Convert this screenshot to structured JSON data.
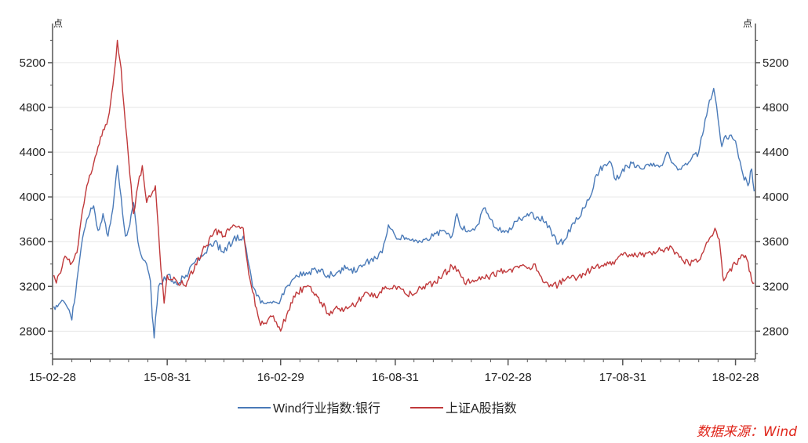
{
  "chart_data": {
    "type": "line",
    "title": "",
    "xlabel": "",
    "ylabel": "点",
    "ylabel_right": "点",
    "ylim": [
      2550,
      5550
    ],
    "yticks": [
      2800,
      3200,
      3600,
      4000,
      4400,
      4800,
      5200
    ],
    "ytick_labels": [
      "2800",
      "3200",
      "3600",
      "4000",
      "4400",
      "4800",
      "5200"
    ],
    "x_range": [
      "2015-02-28",
      "2018-04-01"
    ],
    "x_tick_dates": [
      "2015-02-28",
      "2015-08-31",
      "2016-02-29",
      "2016-08-31",
      "2017-02-28",
      "2017-08-31",
      "2018-02-28"
    ],
    "x_tick_labels": [
      "15-02-28",
      "15-08-31",
      "16-02-29",
      "16-08-31",
      "17-02-28",
      "17-08-31",
      "18-02-28"
    ],
    "grid": "horizontal",
    "legend_position": "bottom",
    "series": [
      {
        "name": "Wind行业指数:银行",
        "color": "#4a7ab8",
        "points": [
          [
            "2015-03-02",
            3020
          ],
          [
            "2015-03-10",
            3040
          ],
          [
            "2015-03-20",
            3050
          ],
          [
            "2015-03-31",
            2900
          ],
          [
            "2015-04-08",
            3250
          ],
          [
            "2015-04-15",
            3550
          ],
          [
            "2015-04-24",
            3800
          ],
          [
            "2015-05-05",
            3920
          ],
          [
            "2015-05-12",
            3700
          ],
          [
            "2015-05-20",
            3850
          ],
          [
            "2015-05-28",
            3650
          ],
          [
            "2015-06-05",
            3900
          ],
          [
            "2015-06-12",
            4280
          ],
          [
            "2015-06-18",
            4000
          ],
          [
            "2015-06-25",
            3650
          ],
          [
            "2015-07-02",
            3750
          ],
          [
            "2015-07-08",
            3950
          ],
          [
            "2015-07-15",
            3600
          ],
          [
            "2015-07-22",
            3450
          ],
          [
            "2015-07-29",
            3400
          ],
          [
            "2015-08-04",
            3250
          ],
          [
            "2015-08-07",
            2930
          ],
          [
            "2015-08-10",
            2740
          ],
          [
            "2015-08-17",
            3200
          ],
          [
            "2015-08-31",
            3300
          ],
          [
            "2015-09-15",
            3220
          ],
          [
            "2015-09-30",
            3300
          ],
          [
            "2015-10-15",
            3420
          ],
          [
            "2015-10-31",
            3500
          ],
          [
            "2015-11-15",
            3600
          ],
          [
            "2015-11-30",
            3500
          ],
          [
            "2015-12-15",
            3620
          ],
          [
            "2015-12-31",
            3650
          ],
          [
            "2016-01-07",
            3450
          ],
          [
            "2016-01-15",
            3200
          ],
          [
            "2016-01-28",
            3050
          ],
          [
            "2016-02-15",
            3050
          ],
          [
            "2016-02-29",
            3080
          ],
          [
            "2016-03-10",
            3200
          ],
          [
            "2016-03-25",
            3300
          ],
          [
            "2016-04-15",
            3330
          ],
          [
            "2016-04-30",
            3350
          ],
          [
            "2016-05-15",
            3300
          ],
          [
            "2016-05-31",
            3330
          ],
          [
            "2016-06-15",
            3370
          ],
          [
            "2016-06-30",
            3330
          ],
          [
            "2016-07-15",
            3420
          ],
          [
            "2016-07-31",
            3450
          ],
          [
            "2016-08-10",
            3500
          ],
          [
            "2016-08-20",
            3750
          ],
          [
            "2016-08-31",
            3650
          ],
          [
            "2016-09-15",
            3620
          ],
          [
            "2016-09-30",
            3600
          ],
          [
            "2016-10-15",
            3620
          ],
          [
            "2016-10-31",
            3650
          ],
          [
            "2016-11-15",
            3700
          ],
          [
            "2016-11-30",
            3650
          ],
          [
            "2016-12-08",
            3850
          ],
          [
            "2016-12-15",
            3720
          ],
          [
            "2016-12-31",
            3700
          ],
          [
            "2017-01-10",
            3750
          ],
          [
            "2017-01-20",
            3900
          ],
          [
            "2017-01-31",
            3800
          ],
          [
            "2017-02-10",
            3720
          ],
          [
            "2017-02-20",
            3700
          ],
          [
            "2017-02-28",
            3680
          ],
          [
            "2017-03-10",
            3780
          ],
          [
            "2017-03-20",
            3800
          ],
          [
            "2017-03-31",
            3850
          ],
          [
            "2017-04-15",
            3820
          ],
          [
            "2017-04-30",
            3780
          ],
          [
            "2017-05-10",
            3650
          ],
          [
            "2017-05-20",
            3580
          ],
          [
            "2017-05-31",
            3620
          ],
          [
            "2017-06-10",
            3750
          ],
          [
            "2017-06-20",
            3800
          ],
          [
            "2017-06-30",
            3900
          ],
          [
            "2017-07-10",
            4000
          ],
          [
            "2017-07-20",
            4200
          ],
          [
            "2017-07-31",
            4280
          ],
          [
            "2017-08-10",
            4320
          ],
          [
            "2017-08-20",
            4150
          ],
          [
            "2017-08-31",
            4250
          ],
          [
            "2017-09-15",
            4300
          ],
          [
            "2017-09-30",
            4250
          ],
          [
            "2017-10-15",
            4300
          ],
          [
            "2017-10-31",
            4280
          ],
          [
            "2017-11-10",
            4400
          ],
          [
            "2017-11-20",
            4300
          ],
          [
            "2017-11-30",
            4250
          ],
          [
            "2017-12-10",
            4300
          ],
          [
            "2017-12-20",
            4350
          ],
          [
            "2017-12-31",
            4400
          ],
          [
            "2018-01-08",
            4600
          ],
          [
            "2018-01-15",
            4800
          ],
          [
            "2018-01-24",
            4970
          ],
          [
            "2018-01-31",
            4700
          ],
          [
            "2018-02-06",
            4450
          ],
          [
            "2018-02-12",
            4550
          ],
          [
            "2018-02-28",
            4500
          ],
          [
            "2018-03-05",
            4350
          ],
          [
            "2018-03-12",
            4200
          ],
          [
            "2018-03-20",
            4100
          ],
          [
            "2018-03-26",
            4250
          ],
          [
            "2018-03-30",
            4050
          ]
        ]
      },
      {
        "name": "上证A股指数",
        "color": "#c0393b",
        "points": [
          [
            "2015-03-02",
            3300
          ],
          [
            "2015-03-06",
            3230
          ],
          [
            "2015-03-13",
            3320
          ],
          [
            "2015-03-20",
            3470
          ],
          [
            "2015-03-31",
            3410
          ],
          [
            "2015-04-08",
            3500
          ],
          [
            "2015-04-15",
            3800
          ],
          [
            "2015-04-24",
            4100
          ],
          [
            "2015-05-05",
            4300
          ],
          [
            "2015-05-12",
            4450
          ],
          [
            "2015-05-20",
            4600
          ],
          [
            "2015-05-28",
            4700
          ],
          [
            "2015-06-05",
            5000
          ],
          [
            "2015-06-12",
            5400
          ],
          [
            "2015-06-18",
            5150
          ],
          [
            "2015-06-25",
            4650
          ],
          [
            "2015-07-02",
            4200
          ],
          [
            "2015-07-08",
            3850
          ],
          [
            "2015-07-15",
            4100
          ],
          [
            "2015-07-22",
            4280
          ],
          [
            "2015-07-29",
            3950
          ],
          [
            "2015-08-04",
            4000
          ],
          [
            "2015-08-12",
            4100
          ],
          [
            "2015-08-17",
            3700
          ],
          [
            "2015-08-21",
            3350
          ],
          [
            "2015-08-26",
            3050
          ],
          [
            "2015-08-31",
            3300
          ],
          [
            "2015-09-15",
            3250
          ],
          [
            "2015-09-30",
            3200
          ],
          [
            "2015-10-15",
            3400
          ],
          [
            "2015-10-31",
            3550
          ],
          [
            "2015-11-15",
            3700
          ],
          [
            "2015-11-30",
            3650
          ],
          [
            "2015-12-15",
            3750
          ],
          [
            "2015-12-31",
            3720
          ],
          [
            "2016-01-07",
            3400
          ],
          [
            "2016-01-15",
            3150
          ],
          [
            "2016-01-28",
            2850
          ],
          [
            "2016-02-15",
            2930
          ],
          [
            "2016-02-29",
            2800
          ],
          [
            "2016-03-10",
            2950
          ],
          [
            "2016-03-25",
            3150
          ],
          [
            "2016-04-15",
            3200
          ],
          [
            "2016-04-30",
            3100
          ],
          [
            "2016-05-15",
            2960
          ],
          [
            "2016-05-31",
            3000
          ],
          [
            "2016-06-15",
            3000
          ],
          [
            "2016-06-30",
            3050
          ],
          [
            "2016-07-15",
            3150
          ],
          [
            "2016-07-31",
            3100
          ],
          [
            "2016-08-15",
            3200
          ],
          [
            "2016-08-31",
            3200
          ],
          [
            "2016-09-15",
            3140
          ],
          [
            "2016-09-30",
            3130
          ],
          [
            "2016-10-15",
            3200
          ],
          [
            "2016-10-31",
            3230
          ],
          [
            "2016-11-15",
            3300
          ],
          [
            "2016-11-30",
            3380
          ],
          [
            "2016-12-10",
            3350
          ],
          [
            "2016-12-20",
            3230
          ],
          [
            "2016-12-31",
            3240
          ],
          [
            "2017-01-15",
            3260
          ],
          [
            "2017-01-31",
            3300
          ],
          [
            "2017-02-15",
            3330
          ],
          [
            "2017-02-28",
            3340
          ],
          [
            "2017-03-15",
            3380
          ],
          [
            "2017-03-31",
            3360
          ],
          [
            "2017-04-10",
            3400
          ],
          [
            "2017-04-20",
            3300
          ],
          [
            "2017-04-30",
            3240
          ],
          [
            "2017-05-10",
            3200
          ],
          [
            "2017-05-20",
            3220
          ],
          [
            "2017-05-31",
            3260
          ],
          [
            "2017-06-15",
            3280
          ],
          [
            "2017-06-30",
            3310
          ],
          [
            "2017-07-15",
            3360
          ],
          [
            "2017-07-31",
            3380
          ],
          [
            "2017-08-15",
            3420
          ],
          [
            "2017-08-31",
            3480
          ],
          [
            "2017-09-15",
            3490
          ],
          [
            "2017-09-30",
            3480
          ],
          [
            "2017-10-15",
            3500
          ],
          [
            "2017-10-31",
            3520
          ],
          [
            "2017-11-10",
            3550
          ],
          [
            "2017-11-20",
            3530
          ],
          [
            "2017-11-30",
            3460
          ],
          [
            "2017-12-15",
            3400
          ],
          [
            "2017-12-31",
            3430
          ],
          [
            "2018-01-10",
            3550
          ],
          [
            "2018-01-20",
            3650
          ],
          [
            "2018-01-26",
            3720
          ],
          [
            "2018-02-02",
            3620
          ],
          [
            "2018-02-06",
            3400
          ],
          [
            "2018-02-09",
            3250
          ],
          [
            "2018-02-15",
            3320
          ],
          [
            "2018-02-28",
            3400
          ],
          [
            "2018-03-05",
            3450
          ],
          [
            "2018-03-12",
            3480
          ],
          [
            "2018-03-20",
            3420
          ],
          [
            "2018-03-26",
            3250
          ],
          [
            "2018-03-30",
            3230
          ]
        ]
      }
    ]
  },
  "source_note": "数据来源：Wind"
}
